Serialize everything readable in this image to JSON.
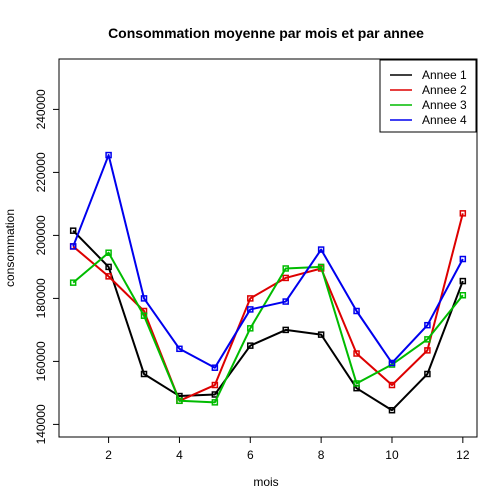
{
  "chart_data": {
    "type": "line",
    "title": "Consommation moyenne par mois et par annee",
    "xlabel": "mois",
    "ylabel": "consommation",
    "xlim": [
      0.6,
      12.4
    ],
    "ylim": [
      136000,
      256000
    ],
    "xticks": [
      2,
      4,
      6,
      8,
      10,
      12
    ],
    "yticks": [
      140000,
      160000,
      180000,
      200000,
      220000,
      240000
    ],
    "x": [
      1,
      2,
      3,
      4,
      5,
      6,
      7,
      8,
      9,
      10,
      11,
      12
    ],
    "legend_position": "top-right",
    "grid": false,
    "series": [
      {
        "name": "Annee 1",
        "color": "#000000",
        "values": [
          201500,
          190000,
          156000,
          149000,
          149500,
          165000,
          170000,
          168500,
          151500,
          144500,
          156000,
          185500
        ]
      },
      {
        "name": "Annee 2",
        "color": "#dd0000",
        "values": [
          196500,
          187000,
          176000,
          147500,
          152500,
          180000,
          186500,
          189500,
          162500,
          152500,
          163500,
          207000
        ]
      },
      {
        "name": "Annee 3",
        "color": "#00bb00",
        "values": [
          185000,
          194500,
          174500,
          147500,
          147000,
          170500,
          189500,
          190000,
          153000,
          159000,
          167000,
          181000
        ]
      },
      {
        "name": "Annee 4",
        "color": "#0000ee",
        "values": [
          196500,
          225500,
          180000,
          164000,
          158000,
          176500,
          179000,
          195500,
          176000,
          159500,
          171500,
          192500
        ]
      }
    ]
  }
}
